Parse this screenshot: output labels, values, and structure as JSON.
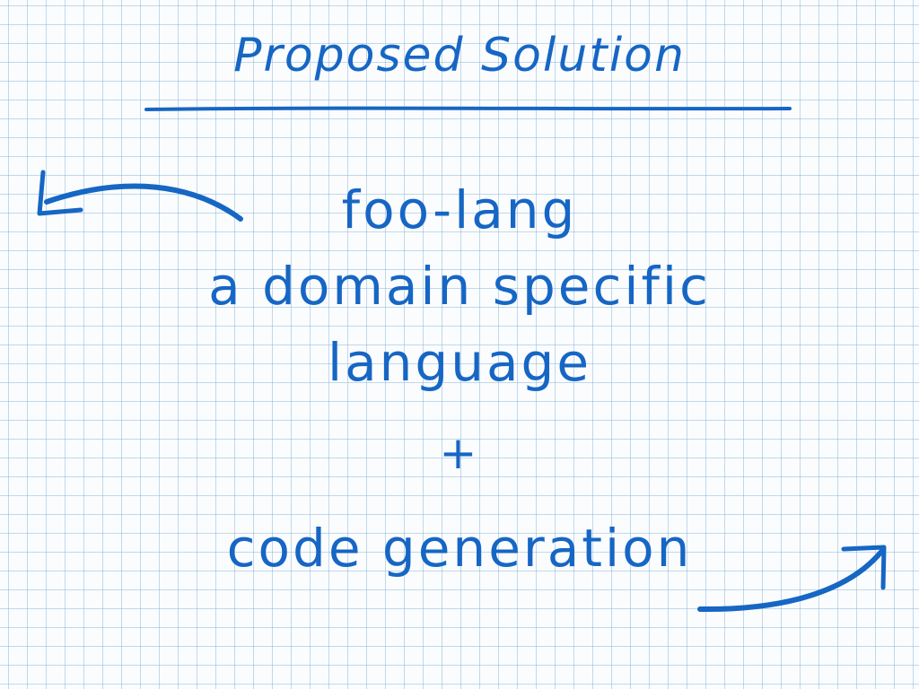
{
  "slide": {
    "title": "Proposed Solution",
    "lines": [
      "foo-lang",
      "a domain specific",
      "language",
      "+",
      "code generation"
    ],
    "ink_color": "#1666c4",
    "grid_color": "#78afd7",
    "icons": [
      "arrow-left-icon",
      "arrow-right-icon"
    ]
  }
}
